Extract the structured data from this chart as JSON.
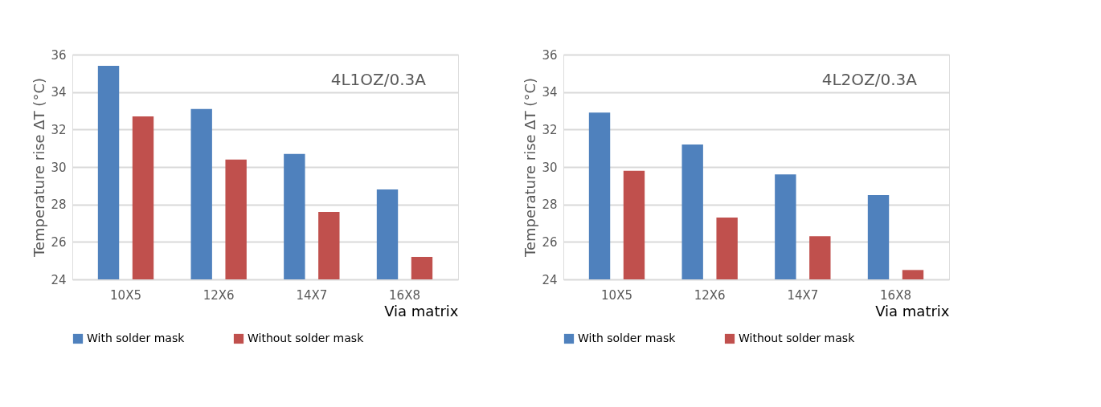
{
  "chart_data": [
    {
      "type": "bar",
      "annotations": [
        "4L1OZ/0.3A"
      ],
      "xlabel": "Via matrix",
      "ylabel": "Temperature rise ΔT (°C)",
      "categories": [
        "10X5",
        "12X6",
        "14X7",
        "16X8"
      ],
      "series": [
        {
          "name": "With solder mask",
          "color": "#4f81bd",
          "values": [
            35.4,
            33.1,
            30.7,
            28.8
          ]
        },
        {
          "name": "Without solder mask",
          "color": "#c0504d",
          "values": [
            32.7,
            30.4,
            27.6,
            25.2
          ]
        }
      ],
      "ylim": [
        24,
        36
      ],
      "yticks": [
        24,
        26,
        28,
        30,
        32,
        34,
        36
      ],
      "grid": "y",
      "legend": "bottom"
    },
    {
      "type": "bar",
      "annotations": [
        "4L2OZ/0.3A"
      ],
      "xlabel": "Via matrix",
      "ylabel": "Temperature rise ΔT (°C)",
      "categories": [
        "10X5",
        "12X6",
        "14X7",
        "16X8"
      ],
      "series": [
        {
          "name": "With solder mask",
          "color": "#4f81bd",
          "values": [
            32.9,
            31.2,
            29.6,
            28.5
          ]
        },
        {
          "name": "Without solder mask",
          "color": "#c0504d",
          "values": [
            29.8,
            27.3,
            26.3,
            24.5
          ]
        }
      ],
      "ylim": [
        24,
        36
      ],
      "yticks": [
        24,
        26,
        28,
        30,
        32,
        34,
        36
      ],
      "grid": "y",
      "legend": "bottom"
    }
  ]
}
